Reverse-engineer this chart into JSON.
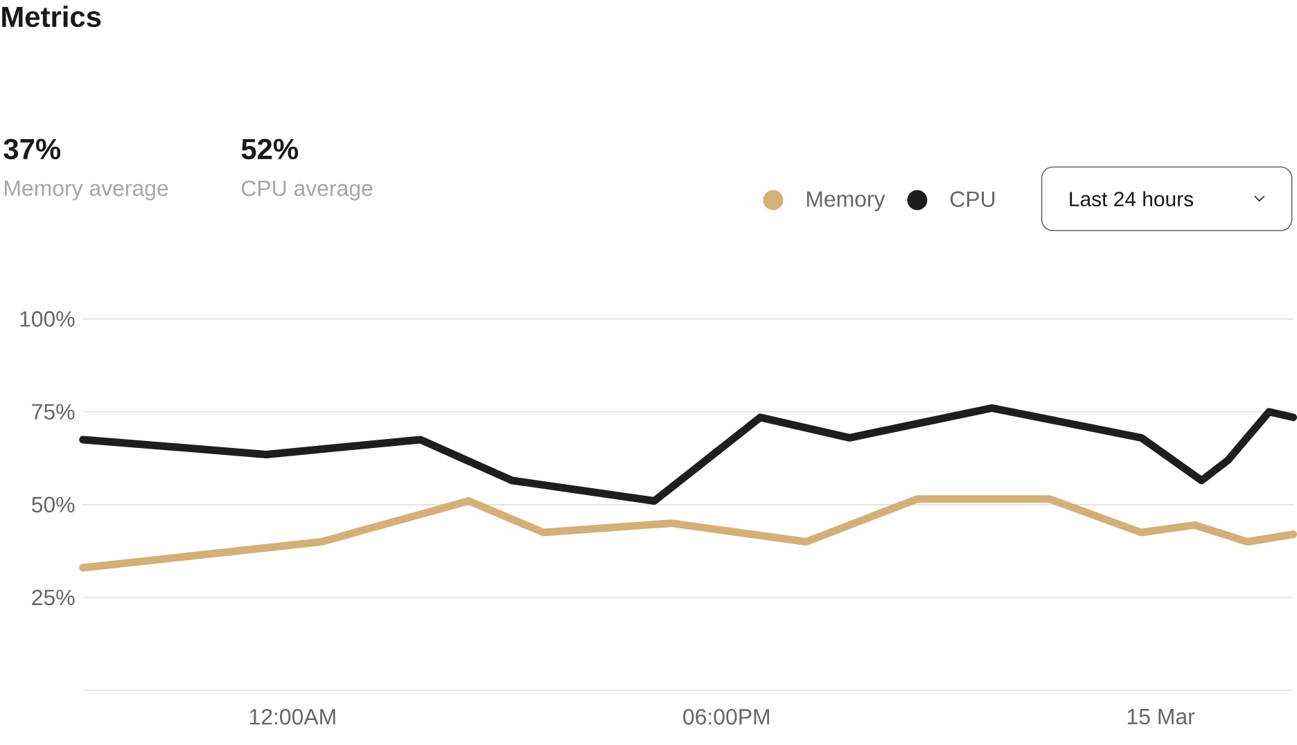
{
  "chart_data": {
    "type": "line",
    "title": "Metrics",
    "annotations": [
      "37%",
      "Memory average",
      "52%",
      "CPU average",
      "Last 24 hours"
    ],
    "xlim": [
      -8.7,
      41.5
    ],
    "xticks": [
      {
        "value": 0,
        "label": "12:00AM"
      },
      {
        "value": 18,
        "label": "06:00PM"
      },
      {
        "value": 36,
        "label": "15 Mar"
      }
    ],
    "ylim": [
      0,
      100
    ],
    "yticks": [
      {
        "value": 25,
        "label": "25%"
      },
      {
        "value": 50,
        "label": "50%"
      },
      {
        "value": 75,
        "label": "75%"
      },
      {
        "value": 100,
        "label": "100%"
      }
    ],
    "grid": "y",
    "legend": "top right",
    "marker": "none",
    "line_style": "solid",
    "series": [
      {
        "name": "Memory",
        "color": "#d4b078",
        "x": [
          -8.7,
          1.2,
          7.3,
          10.4,
          15.7,
          21.3,
          25.9,
          31.4,
          35.2,
          37.4,
          39.6,
          41.5
        ],
        "values": [
          33,
          40,
          51,
          42.5,
          45,
          40,
          51.5,
          51.5,
          42.5,
          44.5,
          40,
          42
        ]
      },
      {
        "name": "CPU",
        "color": "#1e1e1e",
        "x": [
          -8.7,
          -1.1,
          5.3,
          9.1,
          15.0,
          19.4,
          23.1,
          29.0,
          35.2,
          37.7,
          38.8,
          40.5,
          41.5
        ],
        "values": [
          67.5,
          63.5,
          67.5,
          56.5,
          51,
          73.5,
          68,
          76,
          68,
          56.5,
          62,
          75,
          73.5
        ]
      }
    ]
  }
}
